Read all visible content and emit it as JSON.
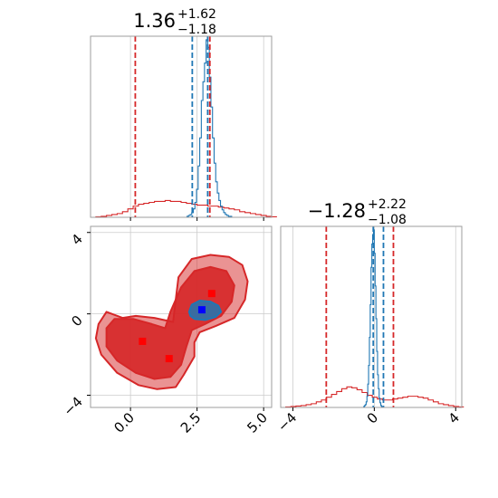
{
  "chart_data": [
    {
      "type": "histogram",
      "panel": "top-left",
      "parameter": "x",
      "title": {
        "value": "1.36",
        "upper": "+1.62",
        "lower": "−1.18"
      },
      "xlim": [
        -1.5,
        5.3
      ],
      "x_ticks": [
        {
          "value": 0.0,
          "label": "0.0"
        },
        {
          "value": 2.5,
          "label": "2.5"
        },
        {
          "value": 5.0,
          "label": "5.0"
        }
      ],
      "colors": {
        "broad": "#d62728",
        "narrow": "#1f77b4"
      },
      "series": [
        {
          "color": "#d62728",
          "bin_start": -1.5,
          "bin_width": 0.2,
          "counts": [
            0,
            0.5,
            1,
            2,
            3,
            4,
            6,
            9,
            12,
            14,
            15,
            16,
            17,
            17,
            18,
            17,
            17,
            16,
            15,
            14,
            13,
            13,
            12,
            12,
            11,
            10,
            9,
            8,
            6,
            5,
            4,
            3,
            2,
            1,
            0.5
          ]
        },
        {
          "color": "#1f77b4",
          "bin_start": 2.0,
          "bin_width": 0.06,
          "counts": [
            0,
            0,
            1,
            2,
            3,
            5,
            9,
            16,
            30,
            55,
            85,
            125,
            145,
            165,
            190,
            182,
            150,
            118,
            85,
            58,
            38,
            26,
            18,
            12,
            8,
            5,
            3,
            2,
            1,
            1,
            0,
            0,
            0,
            0,
            0
          ]
        }
      ],
      "vlines": [
        {
          "x": 0.18,
          "color": "#d62728"
        },
        {
          "x": 2.32,
          "color": "#1f77b4"
        },
        {
          "x": 2.9,
          "color": "#1f77b4"
        },
        {
          "x": 2.98,
          "color": "#d62728"
        }
      ]
    },
    {
      "type": "contour",
      "panel": "bottom-left",
      "xlim": [
        -1.5,
        5.3
      ],
      "ylim": [
        -4.6,
        4.3
      ],
      "x_ticks": [
        {
          "value": 0.0,
          "label": "0.0"
        },
        {
          "value": 2.5,
          "label": "2.5"
        },
        {
          "value": 5.0,
          "label": "5.0"
        }
      ],
      "y_ticks": [
        {
          "value": 4,
          "label": "4"
        },
        {
          "value": 0,
          "label": "0"
        },
        {
          "value": -4,
          "label": "−4"
        }
      ],
      "regions": [
        {
          "name": "red-outer",
          "color": "#d62728",
          "opacity": 0.5,
          "points": [
            [
              -1.2,
              -0.5
            ],
            [
              -0.9,
              0.1
            ],
            [
              -0.3,
              -0.2
            ],
            [
              0.2,
              -0.1
            ],
            [
              0.9,
              -0.2
            ],
            [
              1.6,
              -0.4
            ],
            [
              1.7,
              0.7
            ],
            [
              1.8,
              1.8
            ],
            [
              2.3,
              2.7
            ],
            [
              3.0,
              2.9
            ],
            [
              3.7,
              2.8
            ],
            [
              4.2,
              2.4
            ],
            [
              4.4,
              1.6
            ],
            [
              4.3,
              0.7
            ],
            [
              3.9,
              -0.2
            ],
            [
              3.2,
              -0.6
            ],
            [
              2.6,
              -0.9
            ],
            [
              2.4,
              -1.4
            ],
            [
              2.4,
              -2.1
            ],
            [
              2.0,
              -3.0
            ],
            [
              1.7,
              -3.6
            ],
            [
              1.0,
              -3.7
            ],
            [
              0.3,
              -3.5
            ],
            [
              -0.5,
              -2.9
            ],
            [
              -1.1,
              -2.0
            ],
            [
              -1.3,
              -1.2
            ]
          ]
        },
        {
          "name": "red-inner",
          "color": "#d62728",
          "opacity": 0.9,
          "points": [
            [
              -0.9,
              -0.7
            ],
            [
              -0.6,
              -0.25
            ],
            [
              0.1,
              -0.25
            ],
            [
              0.8,
              -0.5
            ],
            [
              1.3,
              -0.7
            ],
            [
              1.5,
              0.1
            ],
            [
              1.9,
              1.3
            ],
            [
              2.4,
              2.1
            ],
            [
              3.0,
              2.3
            ],
            [
              3.6,
              2.1
            ],
            [
              3.9,
              1.4
            ],
            [
              3.8,
              0.6
            ],
            [
              3.4,
              -0.1
            ],
            [
              2.8,
              -0.5
            ],
            [
              2.3,
              -0.8
            ],
            [
              2.1,
              -1.6
            ],
            [
              1.9,
              -2.5
            ],
            [
              1.5,
              -3.1
            ],
            [
              0.9,
              -3.2
            ],
            [
              0.2,
              -2.9
            ],
            [
              -0.5,
              -2.3
            ],
            [
              -0.9,
              -1.6
            ]
          ]
        },
        {
          "name": "blue-core",
          "color": "#1f77b4",
          "opacity": 0.85,
          "points": [
            [
              2.2,
              0.1
            ],
            [
              2.3,
              0.45
            ],
            [
              2.6,
              0.65
            ],
            [
              3.0,
              0.6
            ],
            [
              3.3,
              0.4
            ],
            [
              3.4,
              0.1
            ],
            [
              3.2,
              -0.15
            ],
            [
              2.8,
              -0.3
            ],
            [
              2.4,
              -0.25
            ],
            [
              2.25,
              -0.1
            ]
          ]
        }
      ],
      "markers": [
        {
          "x": 3.05,
          "y": 1.0,
          "color": "#ff0000"
        },
        {
          "x": 0.45,
          "y": -1.35,
          "color": "#ff0000"
        },
        {
          "x": 1.45,
          "y": -2.2,
          "color": "#ff0000"
        },
        {
          "x": 2.68,
          "y": 0.2,
          "color": "#0000ff"
        }
      ]
    },
    {
      "type": "histogram",
      "panel": "bottom-right",
      "parameter": "y",
      "title": {
        "value": "−1.28",
        "upper": "+2.22",
        "lower": "−1.08"
      },
      "xlim": [
        -4.6,
        4.3
      ],
      "x_ticks": [
        {
          "value": -4,
          "label": "−4"
        },
        {
          "value": 0,
          "label": "0"
        },
        {
          "value": 4,
          "label": "4"
        }
      ],
      "colors": {
        "broad": "#d62728",
        "narrow": "#1f77b4"
      },
      "series": [
        {
          "color": "#d62728",
          "bin_start": -4.6,
          "bin_width": 0.25,
          "counts": [
            0,
            0.5,
            1,
            1.5,
            2,
            3,
            4,
            6,
            8,
            11,
            14,
            17,
            20,
            22,
            21,
            19,
            16,
            13,
            11,
            9,
            8,
            8,
            9,
            10,
            11,
            12,
            12,
            11,
            10,
            8,
            6,
            4,
            3,
            2,
            1,
            0.5
          ]
        },
        {
          "color": "#1f77b4",
          "bin_start": -0.6,
          "bin_width": 0.04,
          "counts": [
            0,
            0,
            1,
            2,
            3,
            6,
            12,
            25,
            45,
            75,
            110,
            150,
            175,
            185,
            190,
            165,
            130,
            95,
            60,
            35,
            20,
            10,
            5,
            2,
            1,
            0,
            0,
            0,
            0,
            0
          ]
        }
      ],
      "vlines": [
        {
          "x": -2.36,
          "color": "#d62728"
        },
        {
          "x": -0.05,
          "color": "#1f77b4"
        },
        {
          "x": 0.45,
          "color": "#1f77b4"
        },
        {
          "x": 0.94,
          "color": "#d62728"
        }
      ]
    }
  ]
}
